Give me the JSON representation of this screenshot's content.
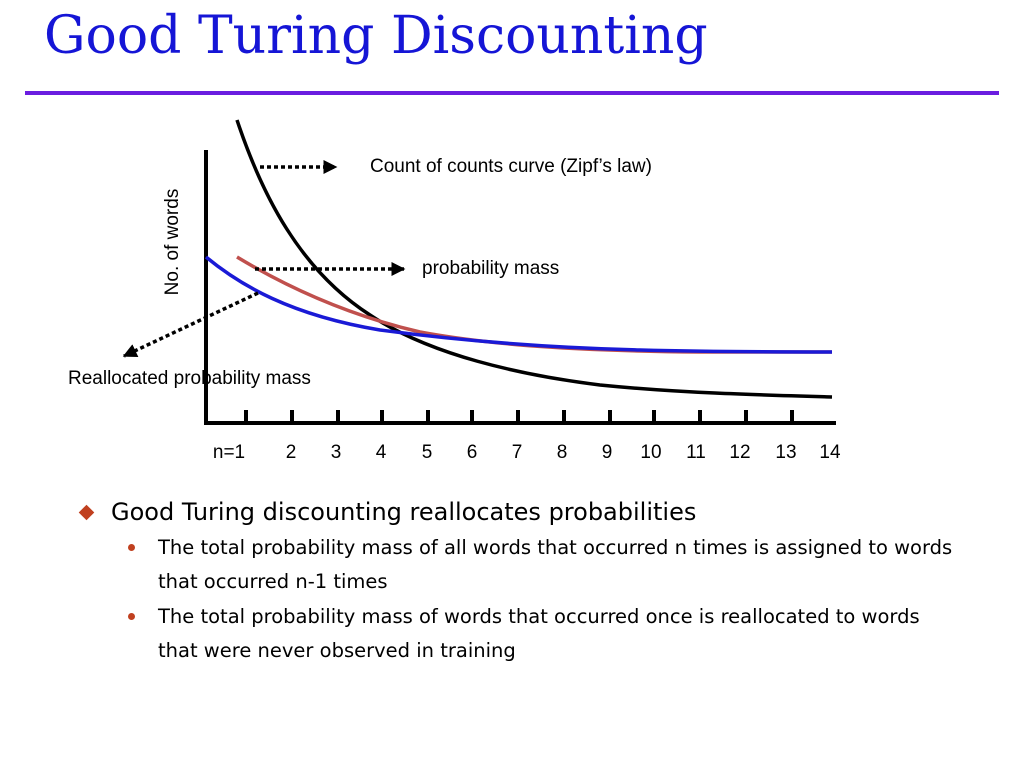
{
  "title": "Good Turing Discounting",
  "colors": {
    "title": "#1515d6",
    "rule": "#6b1de0",
    "zipf_curve": "#000000",
    "probability_curve": "#c0504d",
    "reallocated_curve": "#1a1ad6",
    "bullet": "#c0401f"
  },
  "figure": {
    "y_axis_label": "No. of words",
    "x_ticks": [
      "n=1",
      "2",
      "3",
      "4",
      "5",
      "6",
      "7",
      "8",
      "9",
      "10",
      "11",
      "12",
      "13",
      "14"
    ],
    "annotations": {
      "zipf": "Count of counts curve (Zipf’s law)",
      "probability": "probability mass",
      "reallocated": "Reallocated probability mass"
    }
  },
  "bullets": {
    "main": "Good Turing discounting reallocates probabilities",
    "sub": [
      "The total probability mass of all words that occurred n times is assigned to words that occurred n-1 times",
      "The total probability mass of words that occurred once is reallocated to words that were never observed in training"
    ]
  }
}
